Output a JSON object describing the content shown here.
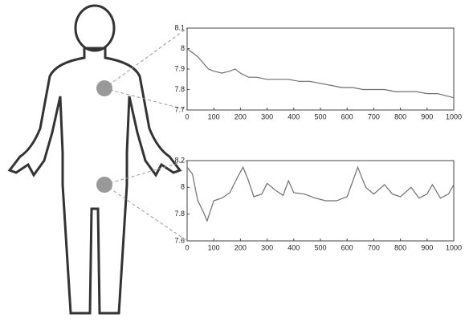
{
  "chart_data": [
    {
      "type": "line",
      "x": [
        0,
        20,
        40,
        60,
        80,
        100,
        130,
        160,
        180,
        200,
        230,
        260,
        300,
        340,
        380,
        420,
        460,
        500,
        540,
        580,
        620,
        660,
        700,
        740,
        780,
        820,
        860,
        900,
        940,
        970,
        1000
      ],
      "series": [
        {
          "color": "#6e6e6e",
          "values": [
            8.0,
            7.98,
            7.96,
            7.93,
            7.9,
            7.89,
            7.88,
            7.89,
            7.9,
            7.88,
            7.86,
            7.86,
            7.85,
            7.85,
            7.85,
            7.84,
            7.84,
            7.83,
            7.82,
            7.81,
            7.81,
            7.8,
            7.8,
            7.8,
            7.79,
            7.79,
            7.79,
            7.78,
            7.78,
            7.77,
            7.76
          ]
        }
      ],
      "xlim": [
        0,
        1000
      ],
      "xticks": [
        0,
        100,
        200,
        300,
        400,
        500,
        600,
        700,
        800,
        900,
        1000
      ],
      "ylim": [
        7.7,
        8.1
      ],
      "yticks": [
        7.7,
        7.8,
        7.9,
        8,
        8.1
      ]
    },
    {
      "type": "line",
      "x": [
        0,
        20,
        40,
        60,
        75,
        100,
        130,
        160,
        190,
        210,
        230,
        250,
        280,
        300,
        330,
        360,
        380,
        400,
        440,
        480,
        520,
        560,
        600,
        640,
        670,
        700,
        740,
        770,
        800,
        840,
        870,
        900,
        920,
        950,
        980,
        1000
      ],
      "series": [
        {
          "color": "#6e6e6e",
          "values": [
            8.15,
            8.1,
            7.9,
            7.82,
            7.75,
            7.9,
            7.92,
            7.96,
            8.08,
            8.15,
            8.05,
            7.93,
            7.95,
            8.03,
            7.98,
            7.94,
            8.05,
            7.96,
            7.95,
            7.92,
            7.9,
            7.9,
            7.93,
            8.15,
            8.0,
            7.95,
            8.02,
            7.95,
            7.93,
            8.0,
            7.92,
            7.95,
            8.02,
            7.92,
            7.95,
            8.02
          ]
        }
      ],
      "xlim": [
        0,
        1000
      ],
      "xticks": [
        0,
        100,
        200,
        300,
        400,
        500,
        600,
        700,
        800,
        900,
        1000
      ],
      "ylim": [
        7.6,
        8.2
      ],
      "yticks": [
        7.6,
        7.8,
        8,
        8.2
      ]
    }
  ]
}
